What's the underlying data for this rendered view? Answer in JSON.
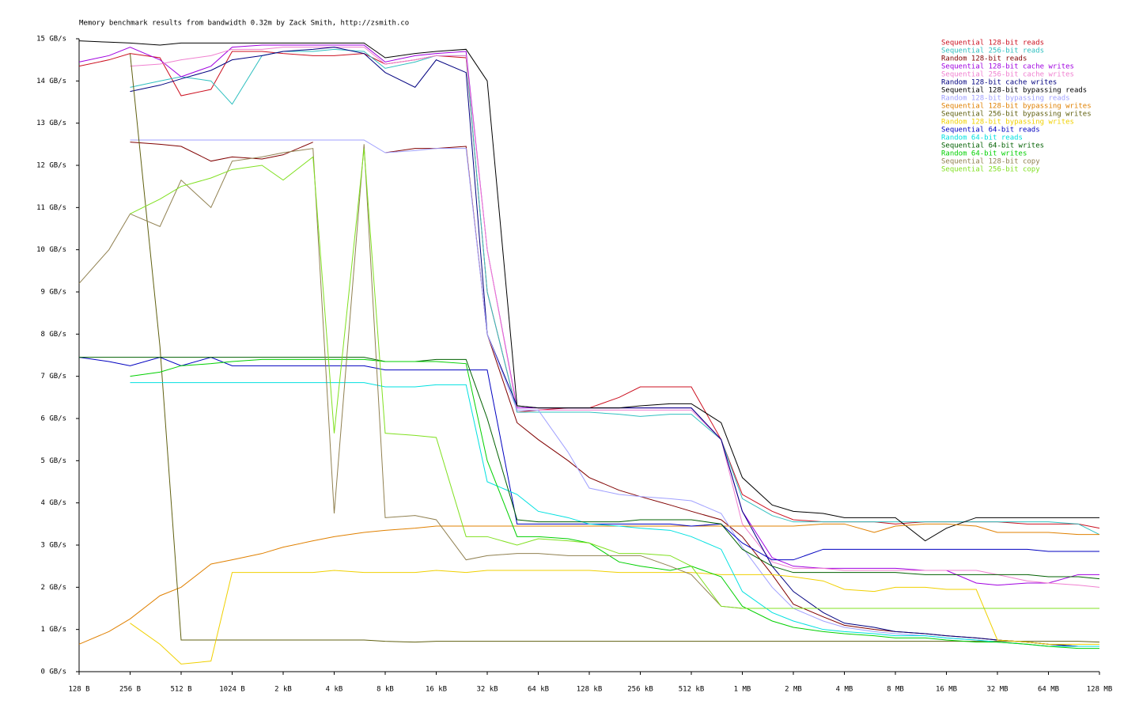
{
  "chart_data": {
    "type": "line",
    "title": "Memory benchmark results from bandwidth 0.32m by Zack Smith, http://zsmith.co",
    "xscale": "log",
    "grid": false,
    "legend": "top-right",
    "xlim": [
      128,
      134217728
    ],
    "ylim": [
      0,
      15
    ],
    "xticks": [
      {
        "value": 128,
        "label": "128 B"
      },
      {
        "value": 256,
        "label": "256 B"
      },
      {
        "value": 512,
        "label": "512 B"
      },
      {
        "value": 1024,
        "label": "1024 B"
      },
      {
        "value": 2048,
        "label": "2 kB"
      },
      {
        "value": 4096,
        "label": "4 kB"
      },
      {
        "value": 8192,
        "label": "8 kB"
      },
      {
        "value": 16384,
        "label": "16 kB"
      },
      {
        "value": 32768,
        "label": "32 kB"
      },
      {
        "value": 65536,
        "label": "64 kB"
      },
      {
        "value": 131072,
        "label": "128 kB"
      },
      {
        "value": 262144,
        "label": "256 kB"
      },
      {
        "value": 524288,
        "label": "512 kB"
      },
      {
        "value": 1048576,
        "label": "1 MB"
      },
      {
        "value": 2097152,
        "label": "2 MB"
      },
      {
        "value": 4194304,
        "label": "4 MB"
      },
      {
        "value": 8388608,
        "label": "8 MB"
      },
      {
        "value": 16777216,
        "label": "16 MB"
      },
      {
        "value": 33554432,
        "label": "32 MB"
      },
      {
        "value": 67108864,
        "label": "64 MB"
      },
      {
        "value": 134217728,
        "label": "128 MB"
      }
    ],
    "yticks": [
      {
        "value": 0,
        "label": "0 GB/s"
      },
      {
        "value": 1,
        "label": "1 GB/s"
      },
      {
        "value": 2,
        "label": "2 GB/s"
      },
      {
        "value": 3,
        "label": "3 GB/s"
      },
      {
        "value": 4,
        "label": "4 GB/s"
      },
      {
        "value": 5,
        "label": "5 GB/s"
      },
      {
        "value": 6,
        "label": "6 GB/s"
      },
      {
        "value": 7,
        "label": "7 GB/s"
      },
      {
        "value": 8,
        "label": "8 GB/s"
      },
      {
        "value": 9,
        "label": "9 GB/s"
      },
      {
        "value": 10,
        "label": "10 GB/s"
      },
      {
        "value": 11,
        "label": "11 GB/s"
      },
      {
        "value": 12,
        "label": "12 GB/s"
      },
      {
        "value": 13,
        "label": "13 GB/s"
      },
      {
        "value": 14,
        "label": "14 GB/s"
      },
      {
        "value": 15,
        "label": "15 GB/s"
      }
    ],
    "x": [
      128,
      192,
      256,
      384,
      512,
      768,
      1024,
      1536,
      2048,
      3072,
      4096,
      6144,
      8192,
      12288,
      16384,
      24576,
      32768,
      49152,
      65536,
      98304,
      131072,
      196608,
      262144,
      393216,
      524288,
      786432,
      1048576,
      1572864,
      2097152,
      3145728,
      4194304,
      6291456,
      8388608,
      12582912,
      16777216,
      25165824,
      33554432,
      50331648,
      67108864,
      100663296,
      134217728
    ],
    "series": [
      {
        "name": "Sequential 128-bit reads",
        "color": "#cc1020",
        "values": [
          14.35,
          14.5,
          14.65,
          14.55,
          13.65,
          13.8,
          14.7,
          14.7,
          14.65,
          14.6,
          14.6,
          14.65,
          14.4,
          14.5,
          14.6,
          14.55,
          9,
          6.15,
          6.2,
          6.25,
          6.25,
          6.5,
          6.75,
          6.75,
          6.75,
          5.5,
          4.2,
          3.8,
          3.6,
          3.55,
          3.55,
          3.55,
          3.5,
          3.55,
          3.55,
          3.55,
          3.55,
          3.5,
          3.5,
          3.5,
          3.4
        ]
      },
      {
        "name": "Sequential 256-bit reads",
        "color": "#30c0c0",
        "values": [
          null,
          null,
          13.85,
          14.0,
          14.1,
          14.0,
          13.45,
          14.6,
          14.7,
          14.7,
          14.75,
          14.7,
          14.3,
          14.45,
          14.6,
          14.6,
          9,
          6.15,
          6.15,
          6.15,
          6.15,
          6.1,
          6.05,
          6.1,
          6.1,
          5.5,
          4.1,
          3.7,
          3.55,
          3.55,
          3.55,
          3.55,
          3.55,
          3.55,
          3.55,
          3.55,
          3.55,
          3.55,
          3.55,
          3.5,
          3.25
        ]
      },
      {
        "name": "Random 128-bit reads",
        "color": "#800000",
        "values": [
          null,
          null,
          12.55,
          12.5,
          12.45,
          12.1,
          12.2,
          12.15,
          12.25,
          12.55,
          null,
          null,
          12.3,
          12.4,
          12.4,
          12.45,
          8,
          5.9,
          5.5,
          5.0,
          4.6,
          4.3,
          4.15,
          3.95,
          3.8,
          3.6,
          3.2,
          2.3,
          1.6,
          1.3,
          1.1,
          1.0,
          0.95,
          0.9,
          0.85,
          0.8,
          0.75,
          0.7,
          0.65,
          0.6,
          0.6
        ]
      },
      {
        "name": "Sequential 128-bit cache writes",
        "color": "#a000e0",
        "values": [
          14.45,
          14.6,
          14.8,
          14.5,
          14.1,
          14.35,
          14.8,
          14.85,
          14.85,
          14.85,
          14.85,
          14.85,
          14.45,
          14.6,
          14.65,
          14.7,
          10,
          6.25,
          6.25,
          6.25,
          6.25,
          6.25,
          6.25,
          6.25,
          6.25,
          5.5,
          3.8,
          2.7,
          2.5,
          2.45,
          2.45,
          2.45,
          2.45,
          2.4,
          2.4,
          2.1,
          2.05,
          2.1,
          2.1,
          2.3,
          2.3
        ]
      },
      {
        "name": "Sequential 256-bit cache writes",
        "color": "#f080d0",
        "values": [
          null,
          null,
          14.35,
          14.4,
          14.5,
          14.6,
          14.75,
          14.75,
          14.8,
          14.8,
          14.8,
          14.8,
          14.4,
          14.5,
          14.6,
          14.6,
          10,
          6.2,
          6.2,
          6.2,
          6.2,
          6.2,
          6.2,
          6.2,
          6.2,
          5.5,
          3.5,
          2.6,
          2.45,
          2.45,
          2.4,
          2.4,
          2.4,
          2.4,
          2.4,
          2.4,
          2.3,
          2.15,
          2.1,
          2.05,
          2.0
        ]
      },
      {
        "name": "Random 128-bit cache writes",
        "color": "#000080",
        "values": [
          null,
          null,
          13.75,
          13.9,
          14.05,
          14.25,
          14.5,
          14.6,
          14.7,
          14.75,
          14.8,
          14.65,
          14.2,
          13.85,
          14.5,
          14.2,
          8,
          6.3,
          6.25,
          6.25,
          6.25,
          6.25,
          6.25,
          6.25,
          6.25,
          5.5,
          3.8,
          2.5,
          1.9,
          1.4,
          1.15,
          1.05,
          0.95,
          0.9,
          0.85,
          0.8,
          0.75,
          0.7,
          0.65,
          0.6,
          0.6
        ]
      },
      {
        "name": "Sequential 128-bit bypassing reads",
        "color": "#000000",
        "values": [
          14.95,
          14.92,
          14.9,
          14.85,
          14.9,
          14.9,
          14.9,
          14.9,
          14.9,
          14.9,
          14.9,
          14.9,
          14.55,
          14.65,
          14.7,
          14.75,
          14,
          6.3,
          6.25,
          6.25,
          6.25,
          6.25,
          6.3,
          6.35,
          6.35,
          5.9,
          4.6,
          3.95,
          3.8,
          3.75,
          3.65,
          3.65,
          3.65,
          3.1,
          3.4,
          3.65,
          3.65,
          3.65,
          3.65,
          3.65,
          3.65
        ]
      },
      {
        "name": "Random 128-bit bypassing reads",
        "color": "#a0a0ff",
        "values": [
          null,
          null,
          12.6,
          12.6,
          12.6,
          12.6,
          12.6,
          12.6,
          12.6,
          12.6,
          12.6,
          12.6,
          12.3,
          12.35,
          12.4,
          12.4,
          8,
          6.2,
          6.2,
          5.2,
          4.35,
          4.2,
          4.15,
          4.1,
          4.05,
          3.75,
          2.95,
          2.0,
          1.5,
          1.2,
          1.05,
          0.95,
          0.9,
          0.85,
          0.8,
          0.75,
          0.7,
          0.65,
          0.6,
          0.6,
          0.6
        ]
      },
      {
        "name": "Sequential 128-bit bypassing writes",
        "color": "#e08000",
        "values": [
          0.65,
          0.95,
          1.25,
          1.8,
          2.0,
          2.55,
          2.65,
          2.8,
          2.95,
          3.1,
          3.2,
          3.3,
          3.35,
          3.4,
          3.45,
          3.45,
          3.45,
          3.45,
          3.45,
          3.45,
          3.45,
          3.45,
          3.45,
          3.45,
          3.45,
          3.45,
          3.45,
          3.45,
          3.45,
          3.5,
          3.5,
          3.3,
          3.45,
          3.5,
          3.5,
          3.45,
          3.3,
          3.3,
          3.3,
          3.25,
          3.25
        ]
      },
      {
        "name": "Sequential 256-bit bypassing writes",
        "color": "#606010",
        "values": [
          null,
          null,
          14.65,
          7.7,
          0.75,
          0.75,
          0.75,
          0.75,
          0.75,
          0.75,
          0.75,
          0.75,
          0.72,
          0.7,
          0.72,
          0.72,
          0.72,
          0.72,
          0.72,
          0.72,
          0.72,
          0.72,
          0.72,
          0.72,
          0.72,
          0.72,
          0.72,
          0.72,
          0.72,
          0.72,
          0.72,
          0.72,
          0.72,
          0.72,
          0.72,
          0.72,
          0.72,
          0.72,
          0.72,
          0.72,
          0.7
        ]
      },
      {
        "name": "Random 128-bit bypassing writes",
        "color": "#f0d000",
        "values": [
          null,
          null,
          1.15,
          0.65,
          0.18,
          0.25,
          2.35,
          2.35,
          2.35,
          2.35,
          2.4,
          2.35,
          2.35,
          2.35,
          2.4,
          2.35,
          2.4,
          2.4,
          2.4,
          2.4,
          2.4,
          2.35,
          2.35,
          2.35,
          2.35,
          2.3,
          2.3,
          2.3,
          2.25,
          2.15,
          1.95,
          1.9,
          2.0,
          2.0,
          1.95,
          1.95,
          0.75,
          0.7,
          0.65,
          0.65,
          0.65
        ]
      },
      {
        "name": "Sequential 64-bit reads",
        "color": "#0000c0",
        "values": [
          7.45,
          7.35,
          7.25,
          7.45,
          7.25,
          7.45,
          7.25,
          7.25,
          7.25,
          7.25,
          7.25,
          7.25,
          7.15,
          7.15,
          7.15,
          7.15,
          7.15,
          3.5,
          3.5,
          3.5,
          3.5,
          3.5,
          3.5,
          3.5,
          3.45,
          3.5,
          3.05,
          2.65,
          2.65,
          2.9,
          2.9,
          2.9,
          2.9,
          2.9,
          2.9,
          2.9,
          2.9,
          2.9,
          2.85,
          2.85,
          2.85
        ]
      },
      {
        "name": "Random 64-bit reads",
        "color": "#00e0e0",
        "values": [
          null,
          null,
          6.85,
          6.85,
          6.85,
          6.85,
          6.85,
          6.85,
          6.85,
          6.85,
          6.85,
          6.85,
          6.75,
          6.75,
          6.8,
          6.8,
          4.5,
          4.2,
          3.8,
          3.65,
          3.5,
          3.45,
          3.4,
          3.35,
          3.2,
          2.9,
          1.9,
          1.4,
          1.2,
          1.0,
          0.95,
          0.9,
          0.85,
          0.85,
          0.8,
          0.75,
          0.7,
          0.65,
          0.6,
          0.6,
          0.6
        ]
      },
      {
        "name": "Sequential 64-bit writes",
        "color": "#006000",
        "values": [
          7.45,
          7.45,
          7.45,
          7.45,
          7.45,
          7.45,
          7.45,
          7.45,
          7.45,
          7.45,
          7.45,
          7.45,
          7.35,
          7.35,
          7.4,
          7.4,
          6,
          3.6,
          3.55,
          3.55,
          3.55,
          3.55,
          3.6,
          3.6,
          3.6,
          3.5,
          2.9,
          2.5,
          2.35,
          2.35,
          2.35,
          2.35,
          2.35,
          2.3,
          2.3,
          2.3,
          2.3,
          2.3,
          2.25,
          2.25,
          2.2
        ]
      },
      {
        "name": "Random 64-bit writes",
        "color": "#00d000",
        "values": [
          null,
          null,
          7.0,
          7.1,
          7.25,
          7.3,
          7.35,
          7.4,
          7.4,
          7.4,
          7.4,
          7.4,
          7.35,
          7.35,
          7.35,
          7.3,
          5,
          3.2,
          3.2,
          3.15,
          3.05,
          2.6,
          2.5,
          2.4,
          2.5,
          2.25,
          1.55,
          1.2,
          1.05,
          0.95,
          0.9,
          0.85,
          0.8,
          0.8,
          0.75,
          0.7,
          0.7,
          0.65,
          0.6,
          0.55,
          0.55
        ]
      },
      {
        "name": "Sequential 128-bit copy",
        "color": "#908050",
        "values": [
          9.2,
          10.0,
          10.85,
          10.55,
          11.65,
          11.0,
          12.1,
          12.2,
          12.3,
          12.4,
          3.75,
          12.5,
          3.65,
          3.7,
          3.6,
          2.65,
          2.75,
          2.8,
          2.8,
          2.75,
          2.75,
          2.75,
          2.75,
          2.5,
          2.3,
          1.55,
          1.5,
          1.5,
          1.5,
          1.5,
          1.5,
          1.5,
          1.5,
          1.5,
          1.5,
          1.5,
          1.5,
          1.5,
          1.5,
          1.5,
          1.5
        ]
      },
      {
        "name": "Sequential 256-bit copy",
        "color": "#80e020",
        "values": [
          null,
          null,
          10.85,
          11.2,
          11.5,
          11.7,
          11.9,
          12.0,
          11.65,
          12.2,
          5.65,
          12.4,
          5.65,
          5.6,
          5.55,
          3.2,
          3.2,
          3.0,
          3.15,
          3.1,
          3.05,
          2.8,
          2.8,
          2.75,
          2.5,
          1.55,
          1.5,
          1.5,
          1.5,
          1.5,
          1.5,
          1.5,
          1.5,
          1.5,
          1.5,
          1.5,
          1.5,
          1.5,
          1.5,
          1.5,
          1.5
        ]
      }
    ]
  }
}
